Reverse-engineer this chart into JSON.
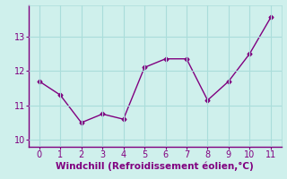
{
  "x": [
    0,
    1,
    2,
    3,
    4,
    5,
    6,
    7,
    8,
    9,
    10,
    11
  ],
  "y": [
    11.7,
    11.3,
    10.5,
    10.75,
    10.6,
    12.1,
    12.35,
    12.35,
    11.15,
    11.7,
    12.5,
    13.55
  ],
  "line_color": "#800080",
  "marker": "D",
  "marker_size": 2.5,
  "xlabel": "Windchill (Refroidissement éolien,°C)",
  "xlabel_color": "#800080",
  "xlabel_fontsize": 7.5,
  "background_color": "#cff0ec",
  "grid_color": "#aaddda",
  "tick_color": "#800080",
  "spine_color": "#800080",
  "ylim": [
    9.8,
    13.9
  ],
  "xlim": [
    -0.5,
    11.5
  ],
  "yticks": [
    10,
    11,
    12,
    13
  ],
  "xticks": [
    0,
    1,
    2,
    3,
    4,
    5,
    6,
    7,
    8,
    9,
    10,
    11
  ]
}
